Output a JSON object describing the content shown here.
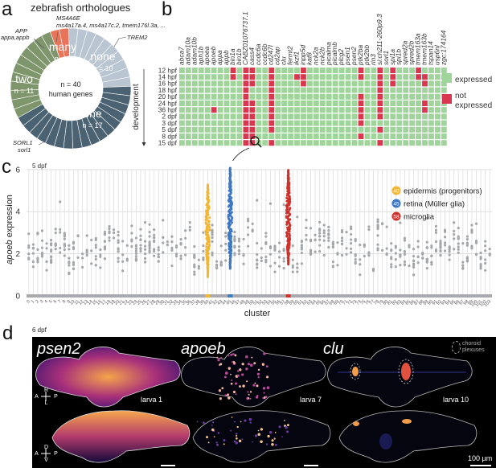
{
  "panels": {
    "a": "a",
    "b": "b",
    "c": "c",
    "d": "d"
  },
  "panel_a": {
    "title": "zebrafish orthologues",
    "center_line1": "n = 40",
    "center_line2": "human genes",
    "callouts": {
      "ms4a6e_human": "MS4A6E",
      "ms4a6e_zf": "ms4a17a.4, ms4a17c.2, tmem176l.3a, ...",
      "app_human": "APP",
      "app_zf": "appa,appb",
      "trem2_human": "TREM2",
      "sorl1_human": "SORL1",
      "sorl1_zf": "sorl1"
    }
  },
  "panel_b": {
    "axis_label": "development",
    "legend": {
      "expressed": "expressed",
      "not1": "not",
      "not2": "expressed"
    },
    "colors": {
      "expressed": "#9fd49b",
      "not_expressed": "#d9364f"
    }
  },
  "panel_c": {
    "subtitle": "5 dpf",
    "legend": [
      {
        "num": "40",
        "label": "epidermis (progenitors)",
        "color": "#f2b632"
      },
      {
        "num": "45",
        "label": "retina (Müller glia)",
        "color": "#3d78c4"
      },
      {
        "num": "58",
        "label": "microglia",
        "color": "#d0302b"
      }
    ]
  },
  "panel_d": {
    "subtitle": "6 dpf",
    "images": [
      {
        "gene": "psen2",
        "larva": "larva 1"
      },
      {
        "gene": "apoeb",
        "larva": "larva 7"
      },
      {
        "gene": "clu",
        "larva": "larva 10"
      }
    ],
    "orient_top": {
      "up": "R",
      "left": "A",
      "right": "P",
      "down": "L"
    },
    "orient_bottom": {
      "up": "D",
      "left": "A",
      "right": "P",
      "down": "V"
    },
    "choroid1": "choroid",
    "choroid2": "plexuses",
    "scale": "100 µm"
  },
  "chart_data": [
    {
      "type": "pie",
      "title": "zebrafish orthologues",
      "categories": [
        "none",
        "one",
        "two",
        "many"
      ],
      "values": [
        10,
        17,
        11,
        2
      ],
      "labels": [
        "none",
        "one",
        "two",
        "many"
      ],
      "value_labels": [
        "n = 10",
        "n = 17",
        "n = 11",
        "n = 2"
      ],
      "colors": [
        "#b9c6d2",
        "#4b6272",
        "#7f956c",
        "#e8755a"
      ],
      "total": 40
    },
    {
      "type": "heatmap",
      "title": "",
      "ylabel": "development",
      "columns": [
        "abca7",
        "adam10a",
        "adam10b",
        "aph1b",
        "apoea",
        "apoeb",
        "appa",
        "appb",
        "bin1a",
        "bin1b",
        "CABZ01076737.1",
        "cass4",
        "ccdc6a",
        "ccdc6b",
        "cd247l",
        "cd2ap",
        "clu",
        "fermt2",
        "ikzf1",
        "inpp5d",
        "kat8",
        "nck2a",
        "nck2b",
        "picalma",
        "picalmb",
        "plcg2",
        "psen1",
        "psen2",
        "ptk2ba",
        "ptk2bb",
        "rin3",
        "si:ch211-260p9.3",
        "sorl1",
        "spi1a",
        "spi1b",
        "spred2a",
        "spred2b",
        "tmem163a",
        "tmem163b",
        "tspan14",
        "usp6nl",
        "zgc:174164"
      ],
      "rows": [
        "12 hpf",
        "14 hpf",
        "16 hpf",
        "18 hpf",
        "20 hpf",
        "24 hpf",
        "36 hpf",
        "2 dpf",
        "3 dpf",
        "5 dpf",
        "8 dpf",
        "15 dpf"
      ],
      "not_expressed": {
        "bin1a": [
          "12 hpf",
          "14 hpf"
        ],
        "CABZ01076737.1": [
          "12 hpf",
          "14 hpf",
          "16 hpf",
          "18 hpf",
          "20 hpf",
          "24 hpf",
          "36 hpf",
          "2 dpf",
          "3 dpf",
          "5 dpf",
          "8 dpf",
          "15 dpf"
        ],
        "cass4": [
          "12 hpf",
          "14 hpf",
          "16 hpf",
          "24 hpf",
          "36 hpf",
          "2 dpf",
          "3 dpf",
          "5 dpf",
          "8 dpf",
          "15 dpf"
        ],
        "apoeb": [
          "36 hpf"
        ],
        "cd247l": [
          "12 hpf",
          "14 hpf",
          "16 hpf",
          "18 hpf",
          "20 hpf",
          "24 hpf",
          "36 hpf",
          "2 dpf",
          "3 dpf",
          "5 dpf",
          "15 dpf"
        ],
        "ikzf1": [
          "14 hpf"
        ],
        "inpp5d": [
          "12 hpf",
          "14 hpf",
          "16 hpf"
        ],
        "ptk2ba": [
          "12 hpf",
          "14 hpf",
          "20 hpf",
          "24 hpf",
          "36 hpf",
          "2 dpf",
          "3 dpf",
          "8 dpf"
        ],
        "si:ch211-260p9.3": [
          "12 hpf",
          "14 hpf",
          "16 hpf",
          "18 hpf",
          "20 hpf",
          "24 hpf",
          "36 hpf",
          "2 dpf",
          "5 dpf",
          "15 dpf"
        ],
        "spi1a": [
          "12 hpf",
          "14 hpf",
          "16 hpf"
        ],
        "tmem163a": [
          "12 hpf",
          "14 hpf"
        ],
        "tmem163b": [
          "14 hpf",
          "16 hpf",
          "24 hpf",
          "36 hpf"
        ]
      },
      "legend": [
        "expressed",
        "not expressed"
      ]
    },
    {
      "type": "scatter",
      "title": "5 dpf",
      "xlabel": "cluster",
      "ylabel": "apoeb expression",
      "ylim": [
        0,
        6.3
      ],
      "yticks": [
        0,
        2,
        4,
        6
      ],
      "x_categories_count": 104,
      "x_ticks": "0..103",
      "highlighted": [
        {
          "cluster": 40,
          "label": "epidermis (progenitors)",
          "color": "#f2b632",
          "min": 0.9,
          "max": 5.3
        },
        {
          "cluster": 45,
          "label": "retina (Müller glia)",
          "color": "#3d78c4",
          "min": 1.3,
          "max": 6.1
        },
        {
          "cluster": 58,
          "label": "microglia",
          "color": "#d0302b",
          "min": 1.5,
          "max": 6.0
        }
      ],
      "other_clusters_typical_range": [
        0.8,
        3.5
      ],
      "all_clusters_zero_baseline": true,
      "grid": true
    }
  ]
}
